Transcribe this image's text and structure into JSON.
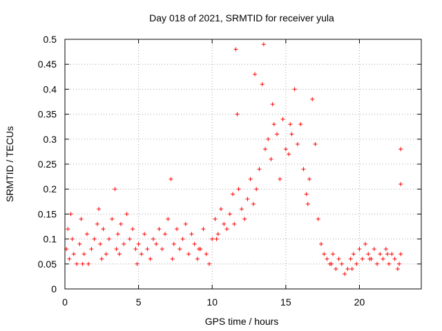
{
  "chart_data": {
    "type": "scatter",
    "title": "Day 018 of 2021, SRMTID for receiver yula",
    "xlabel": "GPS time / hours",
    "ylabel": "SRMTID / TECUs",
    "xlim": [
      0,
      24.2
    ],
    "ylim": [
      0,
      0.5
    ],
    "grid": true,
    "marker": "+",
    "marker_color": "#ff0000",
    "x_ticks": [
      0,
      5,
      10,
      15,
      20
    ],
    "x_tick_labels": [
      "0",
      "5",
      "10",
      "15",
      "20"
    ],
    "y_ticks": [
      0,
      0.05,
      0.1,
      0.15,
      0.2,
      0.25,
      0.3,
      0.35,
      0.4,
      0.45,
      0.5
    ],
    "y_tick_labels": [
      "0",
      "0.05",
      "0.1",
      "0.15",
      "0.2",
      "0.25",
      "0.3",
      "0.35",
      "0.4",
      "0.45",
      "0.5"
    ],
    "series": [
      {
        "name": "SRMTID yula",
        "x": [
          0.1,
          0.2,
          0.3,
          0.5,
          0.6,
          0.8,
          1.0,
          1.1,
          1.3,
          1.5,
          1.6,
          1.8,
          2.0,
          2.2,
          2.3,
          2.4,
          2.6,
          2.8,
          3.0,
          3.2,
          3.4,
          3.5,
          3.6,
          3.8,
          4.0,
          4.2,
          4.4,
          4.6,
          4.8,
          5.0,
          5.2,
          5.4,
          5.6,
          5.8,
          6.0,
          6.2,
          6.4,
          6.6,
          6.8,
          7.0,
          7.2,
          7.4,
          7.6,
          7.8,
          8.0,
          8.2,
          8.4,
          8.6,
          8.8,
          9.0,
          9.2,
          9.4,
          9.6,
          9.8,
          10.0,
          10.2,
          10.4,
          10.6,
          10.8,
          11.0,
          11.2,
          11.4,
          11.6,
          11.7,
          11.8,
          12.0,
          12.2,
          12.4,
          12.6,
          12.8,
          13.0,
          13.2,
          13.4,
          13.5,
          13.6,
          13.8,
          14.0,
          14.2,
          14.4,
          14.6,
          14.8,
          15.0,
          15.2,
          15.4,
          15.6,
          15.8,
          16.0,
          16.2,
          16.4,
          16.6,
          16.8,
          17.0,
          17.2,
          17.4,
          17.6,
          17.8,
          18.0,
          18.2,
          18.4,
          18.6,
          18.8,
          19.0,
          19.2,
          19.4,
          19.6,
          19.8,
          20.0,
          20.2,
          20.4,
          20.6,
          20.8,
          21.0,
          21.2,
          21.4,
          21.6,
          21.8,
          22.0,
          22.2,
          22.4,
          22.6,
          22.8,
          22.8,
          22.8,
          0.4,
          1.2,
          2.5,
          3.7,
          4.9,
          7.3,
          9.1,
          10.3,
          11.5,
          12.9,
          14.1,
          15.3,
          16.5,
          18.1,
          19.5,
          20.7,
          21.9,
          22.7
        ],
        "y": [
          0.08,
          0.12,
          0.06,
          0.1,
          0.07,
          0.05,
          0.09,
          0.14,
          0.07,
          0.11,
          0.05,
          0.08,
          0.1,
          0.13,
          0.16,
          0.09,
          0.12,
          0.07,
          0.1,
          0.14,
          0.2,
          0.08,
          0.11,
          0.13,
          0.09,
          0.15,
          0.1,
          0.12,
          0.08,
          0.09,
          0.07,
          0.11,
          0.08,
          0.06,
          0.1,
          0.09,
          0.12,
          0.08,
          0.11,
          0.14,
          0.22,
          0.09,
          0.12,
          0.08,
          0.1,
          0.13,
          0.07,
          0.11,
          0.09,
          0.06,
          0.08,
          0.12,
          0.07,
          0.05,
          0.1,
          0.14,
          0.11,
          0.16,
          0.13,
          0.12,
          0.15,
          0.19,
          0.48,
          0.35,
          0.2,
          0.16,
          0.14,
          0.18,
          0.22,
          0.17,
          0.2,
          0.24,
          0.41,
          0.49,
          0.28,
          0.3,
          0.26,
          0.33,
          0.31,
          0.22,
          0.34,
          0.28,
          0.27,
          0.31,
          0.4,
          0.29,
          0.33,
          0.24,
          0.19,
          0.22,
          0.38,
          0.29,
          0.14,
          0.09,
          0.07,
          0.06,
          0.05,
          0.07,
          0.04,
          0.06,
          0.05,
          0.03,
          0.04,
          0.06,
          0.07,
          0.05,
          0.08,
          0.06,
          0.09,
          0.07,
          0.06,
          0.08,
          0.05,
          0.07,
          0.06,
          0.08,
          0.05,
          0.07,
          0.06,
          0.04,
          0.07,
          0.28,
          0.21,
          0.15,
          0.05,
          0.06,
          0.07,
          0.05,
          0.06,
          0.08,
          0.1,
          0.13,
          0.43,
          0.37,
          0.33,
          0.17,
          0.05,
          0.04,
          0.06,
          0.07,
          0.05
        ]
      }
    ]
  }
}
